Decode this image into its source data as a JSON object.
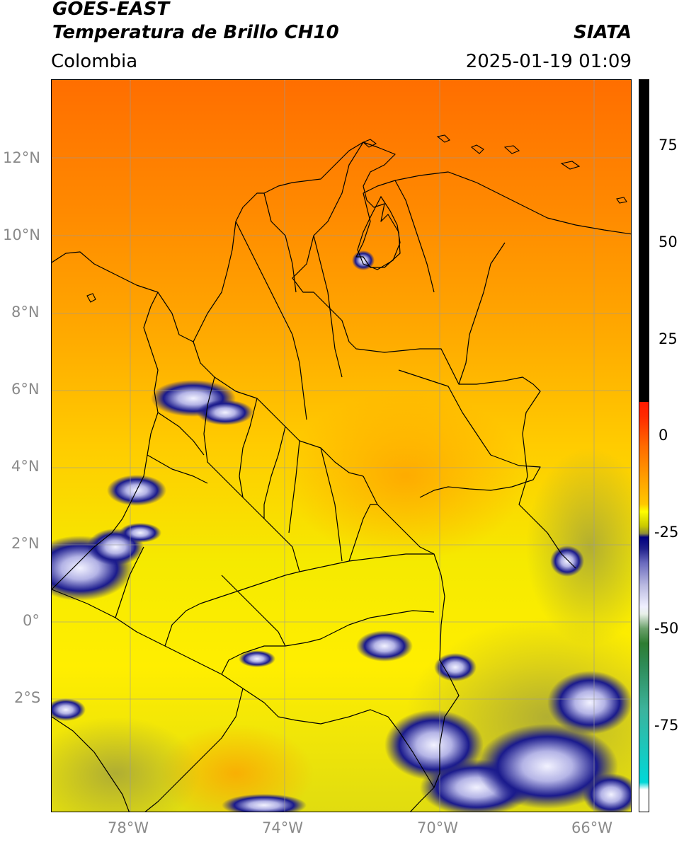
{
  "header": {
    "satellite": "GOES-EAST",
    "product": "Temperatura de Brillo CH10",
    "organization": "SIATA",
    "region": "Colombia",
    "datetime": "2025-01-19 01:09"
  },
  "map": {
    "lat_labels": [
      "12°N",
      "10°N",
      "8°N",
      "6°N",
      "4°N",
      "2°N",
      "0°",
      "2°S"
    ],
    "lon_labels": [
      "78°W",
      "74°W",
      "70°W",
      "66°W"
    ],
    "lat_range": [
      -5,
      14
    ],
    "lon_range": [
      -80,
      -65
    ],
    "gridlines": true
  },
  "colorbar": {
    "tick_labels": [
      "75",
      "50",
      "25",
      "0",
      "-25",
      "-50",
      "-75"
    ],
    "range": [
      -95,
      90
    ],
    "colors": {
      "black": "#000000",
      "red": "#ff1a00",
      "orange": "#ff8c00",
      "yellow": "#ffff00",
      "olive": "#8c8c3a",
      "navy": "#000080",
      "white": "#ffffff",
      "green": "#2e7d32",
      "cyan": "#00d8d8"
    }
  }
}
